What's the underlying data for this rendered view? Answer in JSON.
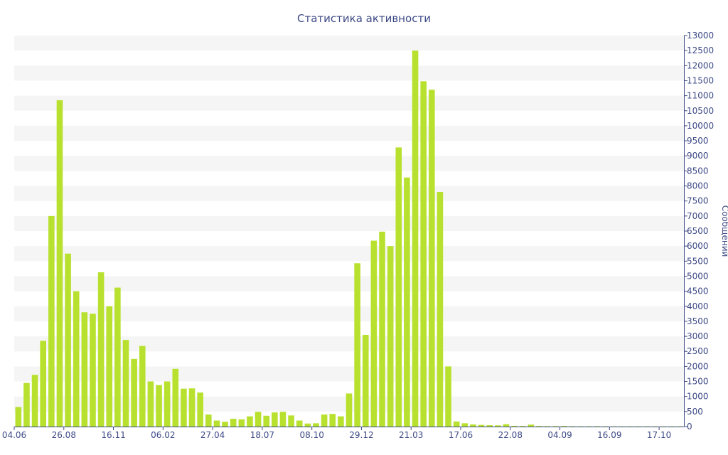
{
  "chart_data": {
    "type": "bar",
    "title": "Статистика активности",
    "xlabel": "",
    "ylabel": "Сообщений",
    "ylim": [
      0,
      13000
    ],
    "y_ticks": [
      0,
      500,
      1000,
      1500,
      2000,
      2500,
      3000,
      3500,
      4000,
      4500,
      5000,
      5500,
      6000,
      6500,
      7000,
      7500,
      8000,
      8500,
      9000,
      9500,
      10000,
      10500,
      11000,
      11500,
      12000,
      12500,
      13000
    ],
    "x_tick_labels": [
      {
        "index": 0,
        "label": "04.06"
      },
      {
        "index": 6,
        "label": "26.08"
      },
      {
        "index": 12,
        "label": "16.11"
      },
      {
        "index": 18,
        "label": "06.02"
      },
      {
        "index": 24,
        "label": "27.04"
      },
      {
        "index": 30,
        "label": "18.07"
      },
      {
        "index": 36,
        "label": "08.10"
      },
      {
        "index": 42,
        "label": "29.12"
      },
      {
        "index": 48,
        "label": "21.03"
      },
      {
        "index": 54,
        "label": "17.06"
      },
      {
        "index": 60,
        "label": "22.08"
      },
      {
        "index": 66,
        "label": "04.09"
      },
      {
        "index": 72,
        "label": "16.09"
      },
      {
        "index": 78,
        "label": "17.10"
      }
    ],
    "grid": "horizontal bands",
    "colors": {
      "bar": "#b8e12f",
      "band": "#f5f5f5",
      "axis": "#3e4a86",
      "text": "#3e4a86"
    },
    "series": [
      {
        "values": [
          650,
          1450,
          1720,
          2850,
          7000,
          10850,
          5750,
          4500,
          3800,
          3750,
          5130,
          4000,
          4620,
          2880,
          2250,
          2680,
          1500,
          1380,
          1500,
          1920,
          1260,
          1270,
          1130,
          400,
          200,
          160,
          260,
          240,
          340,
          490,
          360,
          470,
          490,
          370,
          200,
          100,
          110,
          400,
          420,
          340,
          1100,
          5430,
          3050,
          6180,
          6480,
          6000,
          9280,
          8280,
          12500,
          11480,
          11200,
          7800,
          2000,
          170,
          110,
          70,
          55,
          45,
          40,
          80,
          25,
          20,
          65,
          20,
          15,
          15,
          20,
          12,
          10,
          10,
          12,
          10,
          8,
          8,
          8,
          8,
          8,
          8,
          8,
          8,
          8
        ]
      }
    ]
  }
}
